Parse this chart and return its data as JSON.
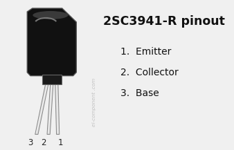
{
  "title": "2SC3941-R pinout",
  "title_fontsize": 12.5,
  "title_bold": true,
  "pins": [
    {
      "number": 1,
      "name": "Emitter"
    },
    {
      "number": 2,
      "name": "Collector"
    },
    {
      "number": 3,
      "name": "Base"
    }
  ],
  "pin_label_fontsize": 10,
  "watermark": "el-component .com",
  "watermark_color": "#bbbbbb",
  "bg_color": "#f0f0f0",
  "body_color": "#111111",
  "body_edge_color": "#555555",
  "pin_fill": "#d8d8d8",
  "pin_edge": "#888888",
  "tab_color": "#222222"
}
